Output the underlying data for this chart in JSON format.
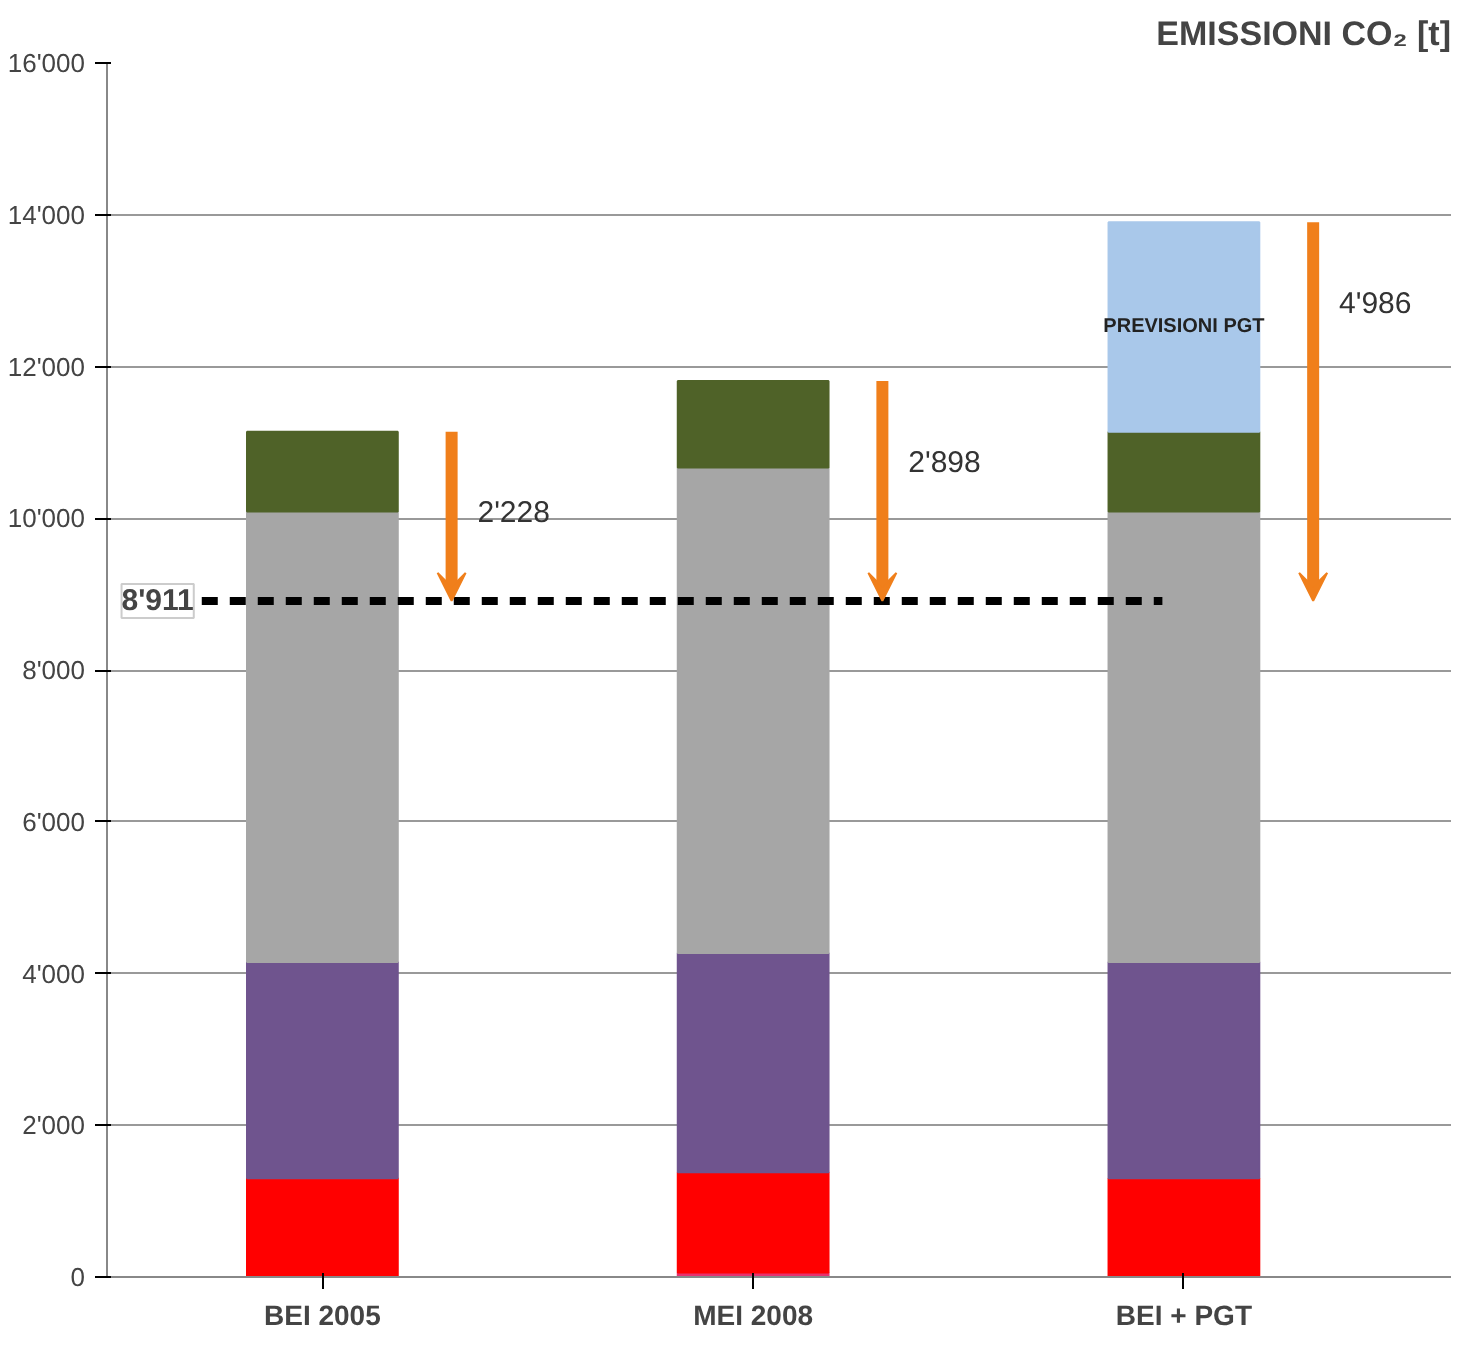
{
  "chart_data": {
    "type": "bar",
    "stacked": true,
    "title": "EMISSIONI CO₂ [t]",
    "categories": [
      "BEI 2005",
      "MEI 2008",
      "BEI + PGT"
    ],
    "series": [
      {
        "color": "#e8306e",
        "values": [
          null,
          60,
          null
        ]
      },
      {
        "color": "#ff0000",
        "values": [
          1300,
          1320,
          1300
        ]
      },
      {
        "color": "#6f548e",
        "values": [
          2850,
          2890,
          2850
        ]
      },
      {
        "color": "#a6a6a6",
        "values": [
          5940,
          6400,
          5940
        ]
      },
      {
        "color": "#4f6228",
        "values": [
          1050,
          1140,
          1050
        ]
      },
      {
        "name": "PREVISIONI PGT",
        "color": "#a9c8ea",
        "values": [
          null,
          null,
          2760
        ]
      }
    ],
    "ylim": [
      0,
      16000
    ],
    "yticks": [
      0,
      {
        "value": 2000,
        "label": "2'000"
      },
      {
        "value": 4000,
        "label": "4'000"
      },
      {
        "value": 6000,
        "label": "6'000"
      },
      {
        "value": 8000,
        "label": "8'000"
      },
      {
        "value": 10000,
        "label": "10'000"
      },
      {
        "value": 12000,
        "label": "12'000"
      },
      {
        "value": 14000,
        "label": "14'000"
      },
      {
        "value": 16000,
        "label": "16'000"
      }
    ],
    "grid": "y",
    "ref_lines": [
      {
        "axis": "y",
        "value": 8911,
        "label": "8'911",
        "color": "#000000",
        "line_style": "dashed"
      }
    ],
    "annotations": [
      "2'228",
      "2'898",
      "4'986"
    ]
  }
}
